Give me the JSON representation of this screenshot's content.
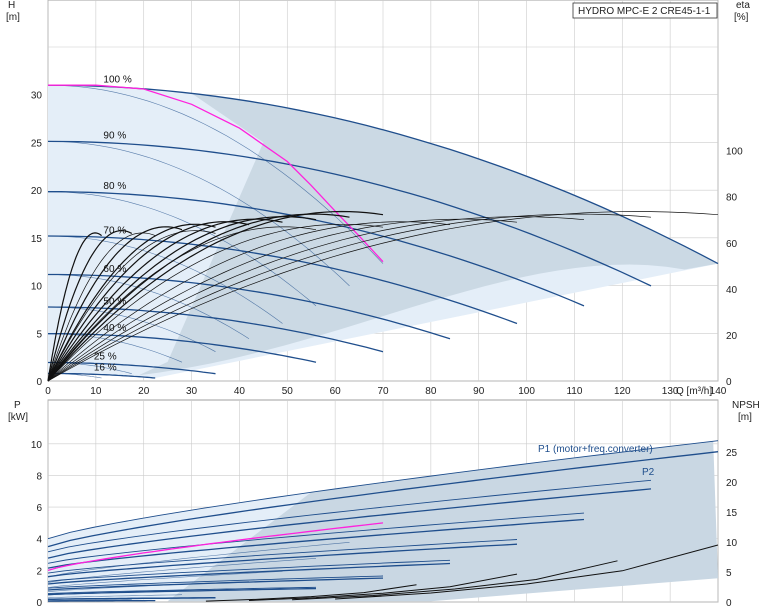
{
  "title": "HYDRO MPC-E 2 CRE45-1-1",
  "colors": {
    "curve": "#1f4e8c",
    "best": "#ff22dd",
    "eff": "#111111",
    "fill": "#c9d7e3",
    "fill_light": "#e4eef8",
    "grid": "#cccccc"
  },
  "chart_data": [
    {
      "type": "line",
      "name": "head",
      "xlabel_unit": "Q [m³/h]",
      "ylabel_symbol": "H",
      "ylabel_unit": "[m]",
      "y2label_symbol": "eta",
      "y2label_unit": "[%]",
      "xlim": [
        0,
        140
      ],
      "ylim": [
        0,
        35
      ],
      "y2lim": [
        0,
        145
      ],
      "xticks": [
        0,
        10,
        20,
        30,
        40,
        50,
        60,
        70,
        80,
        90,
        100,
        110,
        120,
        130,
        140
      ],
      "yticks": [
        0,
        5,
        10,
        15,
        20,
        25,
        30
      ],
      "y2ticks": [
        0,
        20,
        40,
        60,
        80,
        100
      ],
      "grid": true,
      "speed_labels": [
        {
          "text": "100 %",
          "speed": 1.0
        },
        {
          "text": "90 %",
          "speed": 0.9
        },
        {
          "text": "80 %",
          "speed": 0.8
        },
        {
          "text": "70 %",
          "speed": 0.7
        },
        {
          "text": "60 %",
          "speed": 0.6
        },
        {
          "text": "50 %",
          "speed": 0.5
        },
        {
          "text": "40 %",
          "speed": 0.4
        },
        {
          "text": "25 %",
          "speed": 0.25
        },
        {
          "text": "16 %",
          "speed": 0.16
        }
      ],
      "series": [
        {
          "kind": "two_pump_head",
          "shutoff_head": 31,
          "max_flow": 140,
          "end_head": 12.3,
          "speeds": [
            1.0,
            0.9,
            0.8,
            0.7,
            0.6,
            0.5,
            0.4,
            0.25,
            0.16
          ]
        },
        {
          "kind": "one_pump_head",
          "shutoff_head": 31,
          "max_flow": 70,
          "end_head": 12.3,
          "speeds": [
            1.0,
            0.9,
            0.8,
            0.7,
            0.6,
            0.5,
            0.4,
            0.25,
            0.16
          ]
        },
        {
          "kind": "system_curve",
          "points": [
            [
              0,
              31
            ],
            [
              10,
              31
            ],
            [
              20,
              30.6
            ],
            [
              30,
              29
            ],
            [
              40,
              26.5
            ],
            [
              50,
              23
            ],
            [
              55,
              20.5
            ],
            [
              60,
              17.8
            ],
            [
              65,
              15.2
            ],
            [
              70,
              12.5
            ]
          ]
        },
        {
          "kind": "efficiency",
          "peak_eta": 76,
          "single_max_flow": 70,
          "double_max_flow": 140,
          "speeds": [
            1.0,
            0.9,
            0.8,
            0.7,
            0.6,
            0.5,
            0.4,
            0.25,
            0.16
          ]
        }
      ]
    },
    {
      "type": "line",
      "name": "power",
      "ylabel_symbol": "P",
      "ylabel_unit": "[kW]",
      "y2label_symbol": "NPSH",
      "y2label_unit": "[m]",
      "xlim": [
        0,
        140
      ],
      "ylim": [
        0,
        11
      ],
      "y2lim": [
        0,
        29
      ],
      "yticks": [
        0,
        2,
        4,
        6,
        8,
        10
      ],
      "y2ticks": [
        0,
        5,
        10,
        15,
        20,
        25
      ],
      "grid": true,
      "series_labels": [
        {
          "name": "P1 (motor+freq.converter)"
        },
        {
          "name": "P2"
        }
      ],
      "series": [
        {
          "kind": "P1",
          "p0": 4.0,
          "p_end": 10.2,
          "max_flow": 140
        },
        {
          "kind": "P2",
          "p0": 3.5,
          "p_end": 9.5,
          "max_flow": 140
        },
        {
          "kind": "single_pump_power",
          "p0": 2.0,
          "p_end": 5.0,
          "max_flow": 70
        },
        {
          "kind": "npsh",
          "points": [
            [
              60,
              0.5
            ],
            [
              80,
              1.5
            ],
            [
              100,
              3.0
            ],
            [
              120,
              5.2
            ],
            [
              140,
              9.5
            ]
          ]
        }
      ]
    }
  ]
}
